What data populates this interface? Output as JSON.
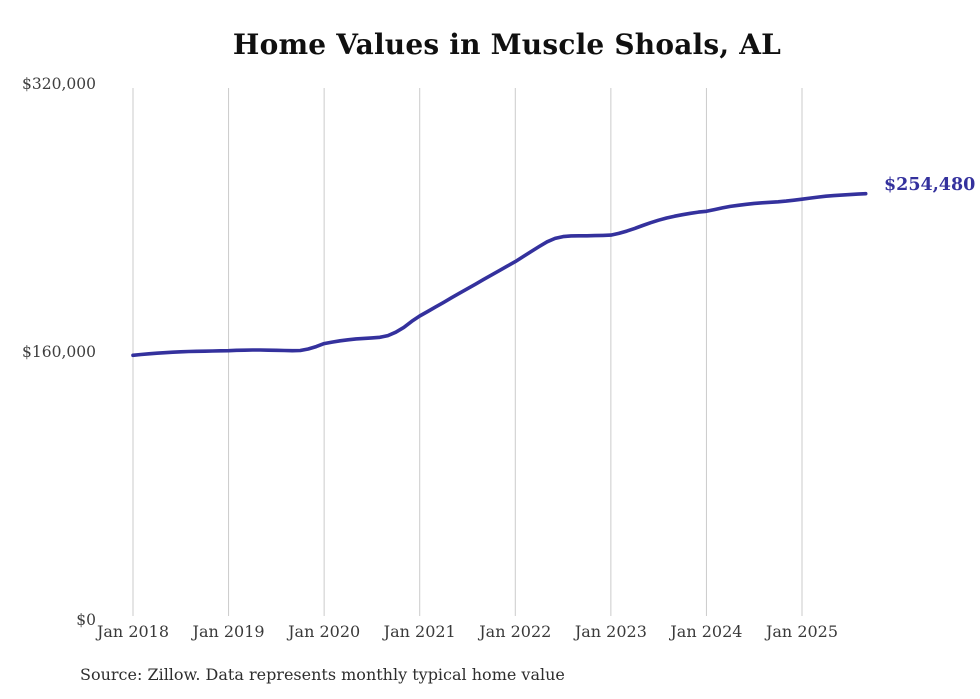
{
  "chart_data": {
    "type": "line",
    "title": "Home Values in Muscle Shoals, AL",
    "source": "Source: Zillow. Data represents monthly typical home value",
    "end_label": "$254,480",
    "latest_value": 254480,
    "ylim": [
      0,
      320000
    ],
    "y_ticks": [
      {
        "label": "$320,000",
        "value": 320000
      },
      {
        "label": "$160,000",
        "value": 160000
      },
      {
        "label": "$0",
        "value": 0
      }
    ],
    "x_tick_labels": [
      "Jan 2018",
      "Jan 2019",
      "Jan 2020",
      "Jan 2021",
      "Jan 2022",
      "Jan 2023",
      "Jan 2024",
      "Jan 2025"
    ],
    "grid": true,
    "legend": "none",
    "line_color": "#34319d",
    "grid_color": "#cbcbcb",
    "months": [
      "2018-01",
      "2018-02",
      "2018-03",
      "2018-04",
      "2018-05",
      "2018-06",
      "2018-07",
      "2018-08",
      "2018-09",
      "2018-10",
      "2018-11",
      "2018-12",
      "2019-01",
      "2019-02",
      "2019-03",
      "2019-04",
      "2019-05",
      "2019-06",
      "2019-07",
      "2019-08",
      "2019-09",
      "2019-10",
      "2019-11",
      "2019-12",
      "2020-01",
      "2020-02",
      "2020-03",
      "2020-04",
      "2020-05",
      "2020-06",
      "2020-07",
      "2020-08",
      "2020-09",
      "2020-10",
      "2020-11",
      "2020-12",
      "2021-01",
      "2021-02",
      "2021-03",
      "2021-04",
      "2021-05",
      "2021-06",
      "2021-07",
      "2021-08",
      "2021-09",
      "2021-10",
      "2021-11",
      "2021-12",
      "2022-01",
      "2022-02",
      "2022-03",
      "2022-04",
      "2022-05",
      "2022-06",
      "2022-07",
      "2022-08",
      "2022-09",
      "2022-10",
      "2022-11",
      "2022-12",
      "2023-01",
      "2023-02",
      "2023-03",
      "2023-04",
      "2023-05",
      "2023-06",
      "2023-07",
      "2023-08",
      "2023-09",
      "2023-10",
      "2023-11",
      "2023-12",
      "2024-01",
      "2024-02",
      "2024-03",
      "2024-04",
      "2024-05",
      "2024-06",
      "2024-07",
      "2024-08",
      "2024-09",
      "2024-10",
      "2024-11",
      "2024-12",
      "2025-01",
      "2025-02",
      "2025-03",
      "2025-04",
      "2025-05",
      "2025-06",
      "2025-07",
      "2025-08",
      "2025-09"
    ],
    "values": [
      158000,
      158500,
      158900,
      159300,
      159600,
      159900,
      160100,
      160300,
      160400,
      160500,
      160600,
      160700,
      160800,
      161000,
      161100,
      161200,
      161200,
      161100,
      161000,
      160900,
      160800,
      160900,
      161800,
      163200,
      165000,
      165900,
      166700,
      167300,
      167800,
      168100,
      168400,
      168800,
      169800,
      171800,
      174700,
      178300,
      181500,
      184200,
      186900,
      189600,
      192400,
      195100,
      197800,
      200500,
      203200,
      205900,
      208600,
      211300,
      214000,
      217000,
      220000,
      223000,
      225800,
      227800,
      228900,
      229300,
      229400,
      229400,
      229500,
      229600,
      229800,
      230800,
      232200,
      233800,
      235500,
      237200,
      238700,
      240000,
      241100,
      242000,
      242800,
      243500,
      244000,
      245000,
      246000,
      246900,
      247600,
      248200,
      248700,
      249100,
      249400,
      249700,
      250100,
      250600,
      251200,
      251900,
      252500,
      253000,
      253400,
      253700,
      254000,
      254250,
      254480
    ]
  }
}
